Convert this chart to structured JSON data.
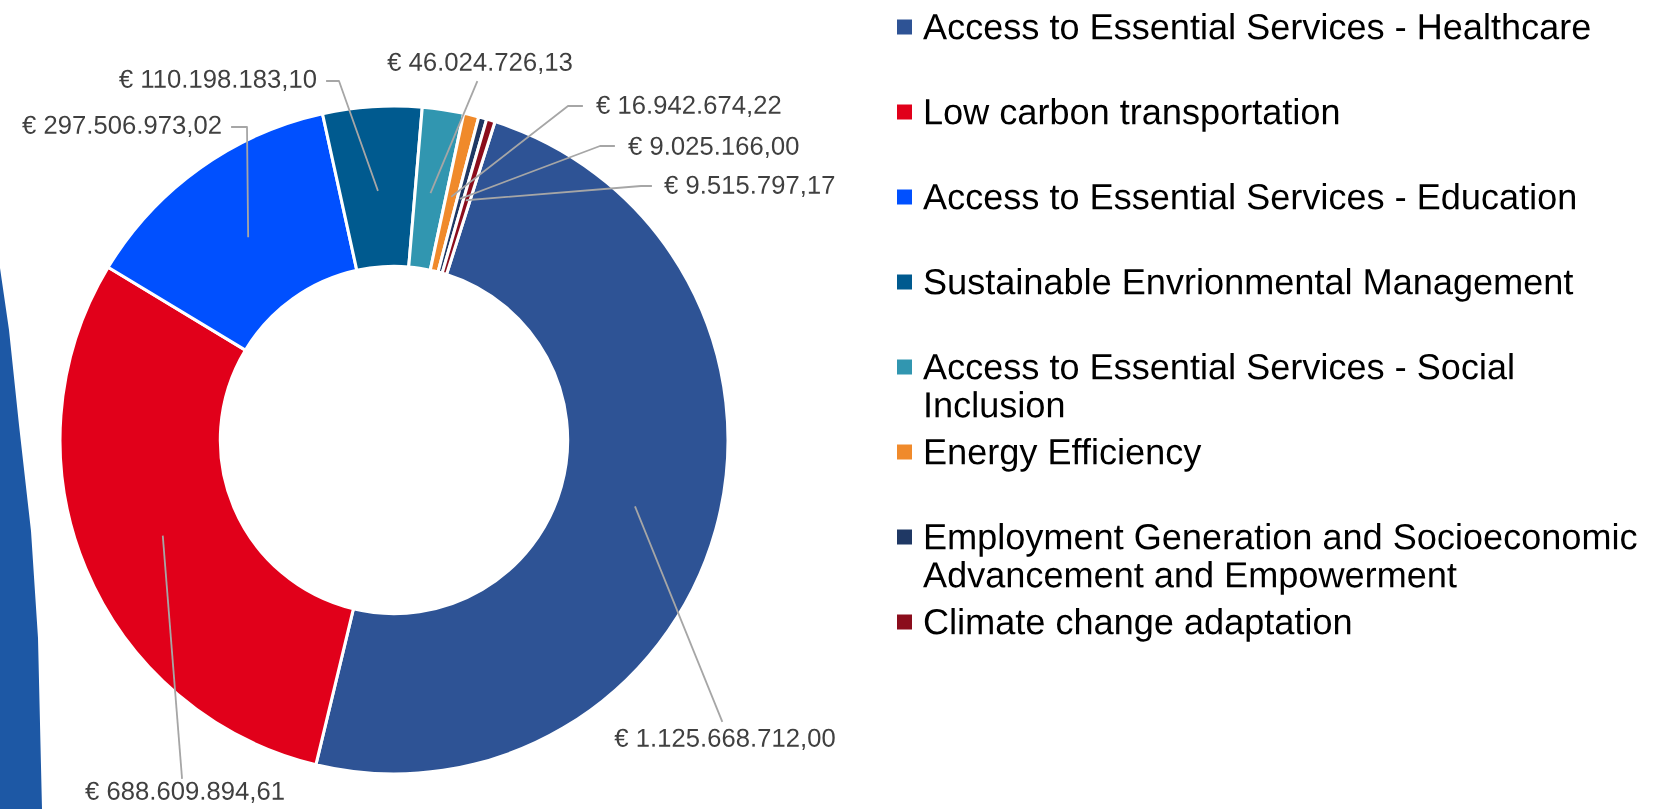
{
  "chart_data": {
    "type": "donut",
    "categories": [
      "Access to Essential Services - Healthcare",
      "Low carbon transportation",
      "Access to Essential Services - Education",
      "Sustainable Envrionmental Management",
      "Access to Essential Services - Social Inclusion",
      "Energy Efficiency",
      "Employment Generation and Socioeconomic Advancement and Empowerment",
      "Climate change adaptation"
    ],
    "values": [
      1125668712.0,
      688609894.61,
      297506973.02,
      110198183.1,
      46024726.13,
      16942674.22,
      9025166.0,
      9515797.17
    ],
    "colors": [
      "#2e5395",
      "#e1001a",
      "#0050ff",
      "#005a8f",
      "#3196b0",
      "#f08a2b",
      "#1f3864",
      "#8b0d1c"
    ],
    "value_labels": [
      "€ 1.125.668.712,00",
      "€ 688.609.894,61",
      "€ 297.506.973,02",
      "€ 110.198.183,10",
      "€ 46.024.726,13",
      "€ 16.942.674,22",
      "€ 9.025.166,00",
      "€ 9.515.797,17"
    ],
    "legend": "right"
  }
}
